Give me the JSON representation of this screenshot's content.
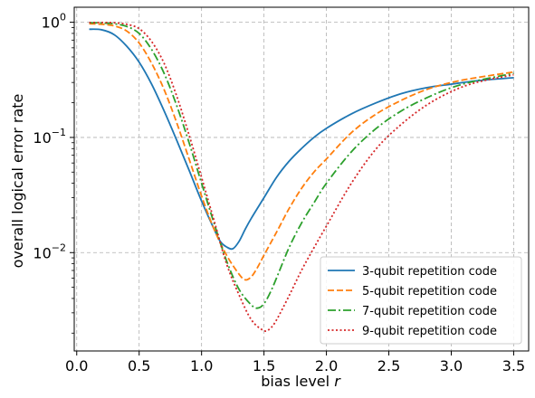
{
  "chart_data": {
    "type": "line",
    "xlabel": "bias level",
    "xlabel_var": "r",
    "ylabel": "overall logical error rate",
    "y_scale": "log",
    "xlim": [
      -0.02,
      3.62
    ],
    "ylim": [
      0.0014,
      1.35
    ],
    "xticks": [
      0.0,
      0.5,
      1.0,
      1.5,
      2.0,
      2.5,
      3.0,
      3.5
    ],
    "xtick_labels": [
      "0.0",
      "0.5",
      "1.0",
      "1.5",
      "2.0",
      "2.5",
      "3.0",
      "3.5"
    ],
    "yticks": [
      1,
      0.1,
      0.01
    ],
    "ytick_labels": [
      {
        "base": "10",
        "exp": "0"
      },
      {
        "base": "10",
        "exp": "−1"
      },
      {
        "base": "10",
        "exp": "−2"
      }
    ],
    "grid": true,
    "legend_position": "lower-right",
    "series": [
      {
        "name": "3-qubit repetition code",
        "color": "#1f77b4",
        "dash": "solid",
        "x": [
          0.1,
          0.2,
          0.3,
          0.4,
          0.5,
          0.6,
          0.7,
          0.8,
          0.9,
          1.0,
          1.1,
          1.15,
          1.2,
          1.25,
          1.3,
          1.35,
          1.4,
          1.5,
          1.6,
          1.7,
          1.8,
          1.9,
          2.0,
          2.2,
          2.4,
          2.6,
          2.8,
          3.0,
          3.2,
          3.5
        ],
        "y": [
          0.87,
          0.86,
          0.78,
          0.62,
          0.45,
          0.29,
          0.17,
          0.095,
          0.052,
          0.028,
          0.016,
          0.0125,
          0.0112,
          0.0108,
          0.0125,
          0.016,
          0.02,
          0.03,
          0.045,
          0.062,
          0.08,
          0.1,
          0.12,
          0.16,
          0.2,
          0.24,
          0.27,
          0.29,
          0.31,
          0.33
        ]
      },
      {
        "name": "5-qubit repetition code",
        "color": "#ff7f0e",
        "dash": "dashed",
        "x": [
          0.1,
          0.2,
          0.3,
          0.4,
          0.5,
          0.6,
          0.7,
          0.8,
          0.9,
          1.0,
          1.1,
          1.2,
          1.3,
          1.35,
          1.4,
          1.45,
          1.5,
          1.6,
          1.7,
          1.8,
          1.9,
          2.0,
          2.2,
          2.4,
          2.6,
          2.8,
          3.0,
          3.2,
          3.5
        ],
        "y": [
          0.97,
          0.96,
          0.93,
          0.84,
          0.66,
          0.44,
          0.26,
          0.135,
          0.065,
          0.031,
          0.016,
          0.0095,
          0.0065,
          0.0058,
          0.0062,
          0.0075,
          0.0095,
          0.015,
          0.024,
          0.036,
          0.05,
          0.065,
          0.11,
          0.16,
          0.21,
          0.26,
          0.3,
          0.33,
          0.37
        ]
      },
      {
        "name": "7-qubit repetition code",
        "color": "#2ca02c",
        "dash": "dashdot",
        "x": [
          0.1,
          0.2,
          0.3,
          0.4,
          0.5,
          0.6,
          0.7,
          0.8,
          0.9,
          1.0,
          1.1,
          1.2,
          1.3,
          1.4,
          1.45,
          1.5,
          1.55,
          1.6,
          1.7,
          1.8,
          1.9,
          2.0,
          2.2,
          2.4,
          2.6,
          2.8,
          3.0,
          3.2,
          3.5
        ],
        "y": [
          0.99,
          0.985,
          0.97,
          0.92,
          0.8,
          0.58,
          0.36,
          0.19,
          0.09,
          0.04,
          0.018,
          0.0085,
          0.0048,
          0.0035,
          0.0033,
          0.0036,
          0.0045,
          0.006,
          0.011,
          0.018,
          0.027,
          0.04,
          0.075,
          0.12,
          0.17,
          0.22,
          0.27,
          0.31,
          0.36
        ]
      },
      {
        "name": "9-qubit repetition code",
        "color": "#d62728",
        "dash": "dotted",
        "x": [
          0.1,
          0.2,
          0.3,
          0.4,
          0.5,
          0.6,
          0.7,
          0.8,
          0.9,
          1.0,
          1.1,
          1.2,
          1.3,
          1.4,
          1.5,
          1.55,
          1.6,
          1.7,
          1.8,
          1.9,
          2.0,
          2.2,
          2.4,
          2.6,
          2.8,
          3.0,
          3.2,
          3.5
        ],
        "y": [
          0.995,
          0.995,
          0.99,
          0.96,
          0.88,
          0.68,
          0.44,
          0.23,
          0.105,
          0.045,
          0.019,
          0.008,
          0.0043,
          0.0026,
          0.0021,
          0.0022,
          0.0026,
          0.0042,
          0.007,
          0.011,
          0.017,
          0.04,
          0.08,
          0.13,
          0.19,
          0.25,
          0.3,
          0.35
        ]
      }
    ]
  }
}
